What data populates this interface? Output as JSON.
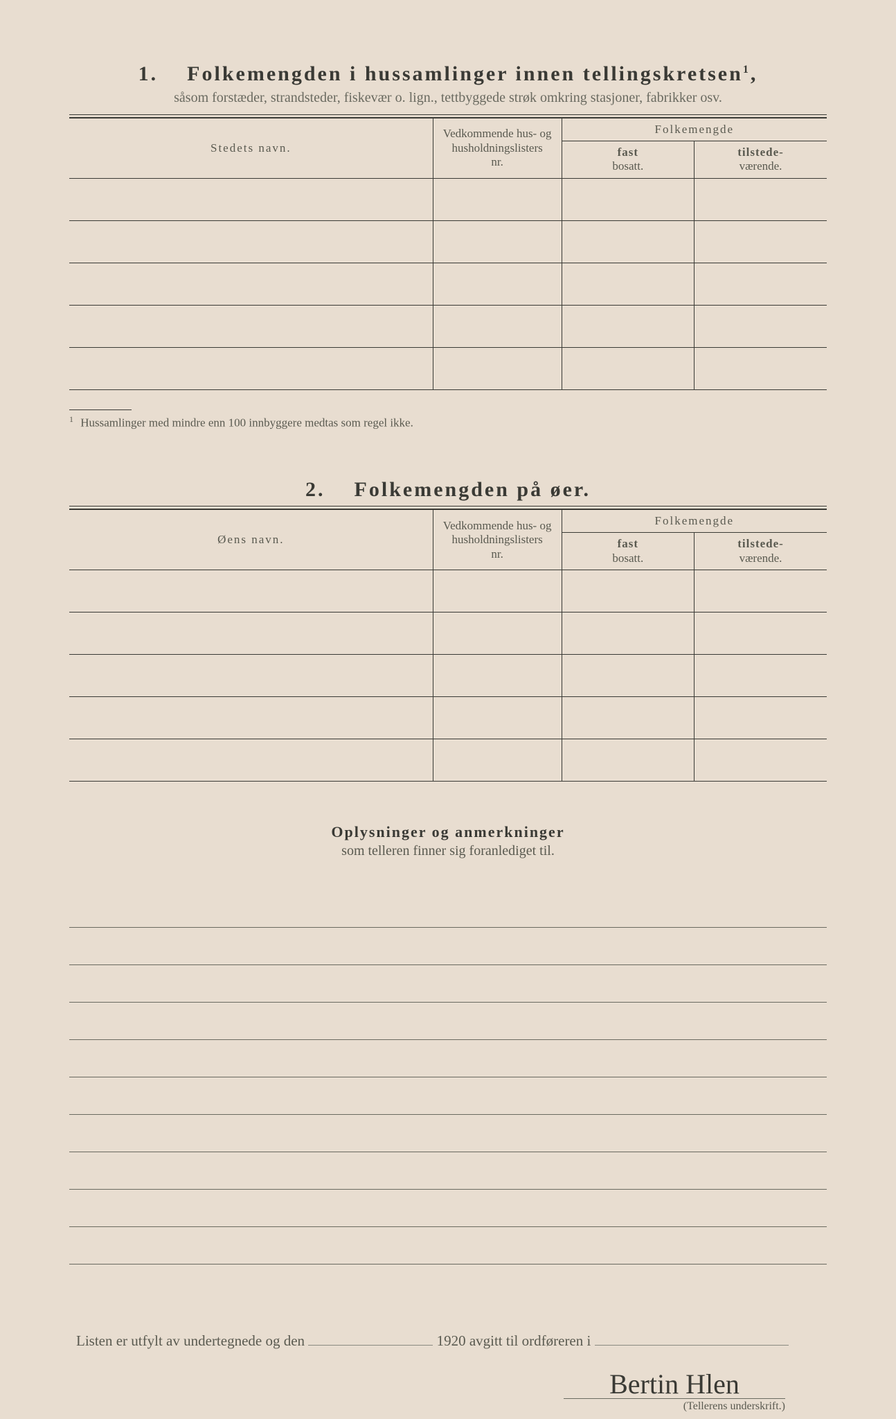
{
  "section1": {
    "number": "1.",
    "title": "Folkemengden i hussamlinger innen tellingskretsen",
    "title_sup": "1",
    "subtitle": "såsom forstæder, strandsteder, fiskevær o. lign., tettbyggede strøk omkring stasjoner, fabrikker osv.",
    "col_name": "Stedets navn.",
    "col_list_l1": "Vedkommende hus- og",
    "col_list_l2": "husholdningslisters",
    "col_list_l3": "nr.",
    "col_folkemengde": "Folkemengde",
    "col_fast_l1": "fast",
    "col_fast_l2": "bosatt.",
    "col_til_l1": "tilstede-",
    "col_til_l2": "værende.",
    "footnote_marker": "1",
    "footnote_text": "Hussamlinger med mindre enn 100 innbyggere medtas som regel ikke."
  },
  "section2": {
    "number": "2.",
    "title": "Folkemengden på øer.",
    "col_name": "Øens navn.",
    "col_list_l1": "Vedkommende hus- og",
    "col_list_l2": "husholdningslisters",
    "col_list_l3": "nr.",
    "col_folkemengde": "Folkemengde",
    "col_fast_l1": "fast",
    "col_fast_l2": "bosatt.",
    "col_til_l1": "tilstede-",
    "col_til_l2": "værende."
  },
  "notes": {
    "title": "Oplysninger og anmerkninger",
    "subtitle": "som telleren finner sig foranlediget til."
  },
  "closing": {
    "text_before": "Listen er utfylt av undertegnede og den",
    "year": "1920",
    "text_after": "avgitt til ordføreren i"
  },
  "signature": {
    "script": "Bertin Hlen",
    "label": "(Tellerens underskrift.)"
  }
}
